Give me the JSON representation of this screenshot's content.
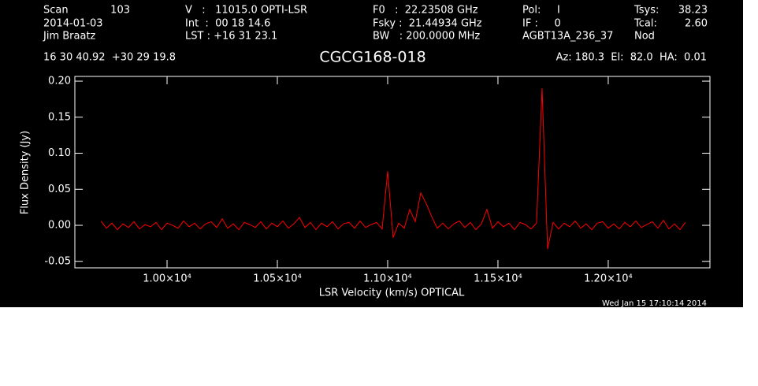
{
  "chart_data": {
    "type": "line",
    "title": "CGCG168-018",
    "header": [
      [
        "Scan",
        "2014-01-03",
        "Jim Braatz"
      ],
      [
        "103"
      ],
      [
        "V   :   11015.0 OPTI-LSR",
        "Int  :  00 18 14.6",
        "LST : +16 31 23.1"
      ],
      [
        "F0   :  22.23508 GHz",
        "Fsky :  21.44934 GHz",
        "BW   : 200.0000 MHz"
      ],
      [
        "Pol:     I",
        "IF :     0",
        "AGBT13A_236_37"
      ],
      [
        "Tsys:",
        "Tcal:",
        "Nod"
      ],
      [
        "38.23",
        "2.60"
      ]
    ],
    "coordinates": "16 30 40.92  +30 29 19.8",
    "pointing": "Az: 180.3  El:  82.0  HA:  0.01",
    "timestamp": "Wed Jan 15 17:10:14 2014",
    "x_label": "LSR Velocity (km/s) OPTICAL",
    "y_label": "Flux Density (Jy)",
    "color": "#ff0000",
    "xlim": [
      9582,
      12461
    ],
    "ylim": [
      -0.059,
      0.2066
    ],
    "xticks": [
      {
        "value": 10000,
        "label": "1.00×10⁴"
      },
      {
        "value": 10500,
        "label": "1.05×10⁴"
      },
      {
        "value": 11000,
        "label": "1.10×10⁴"
      },
      {
        "value": 11500,
        "label": "1.15×10⁴"
      },
      {
        "value": 12000,
        "label": "1.20×10⁴"
      }
    ],
    "yticks": [
      {
        "value": -0.05,
        "label": "-0.05"
      },
      {
        "value": 0,
        "label": "0.00"
      },
      {
        "value": 0.05,
        "label": "0.05"
      },
      {
        "value": 0.1,
        "label": "0.10"
      },
      {
        "value": 0.15,
        "label": "0.15"
      },
      {
        "value": 0.2,
        "label": "0.20"
      }
    ],
    "x": [
      9700,
      9725,
      9750,
      9775,
      9800,
      9825,
      9850,
      9875,
      9900,
      9925,
      9950,
      9975,
      10000,
      10025,
      10050,
      10075,
      10100,
      10125,
      10150,
      10175,
      10200,
      10225,
      10250,
      10275,
      10300,
      10325,
      10350,
      10375,
      10400,
      10425,
      10450,
      10475,
      10500,
      10525,
      10550,
      10575,
      10600,
      10625,
      10650,
      10675,
      10700,
      10725,
      10750,
      10775,
      10800,
      10825,
      10850,
      10875,
      10900,
      10925,
      10950,
      10975,
      11000,
      11025,
      11050,
      11075,
      11100,
      11125,
      11150,
      11175,
      11200,
      11225,
      11250,
      11275,
      11300,
      11325,
      11350,
      11375,
      11400,
      11425,
      11450,
      11475,
      11500,
      11525,
      11550,
      11575,
      11600,
      11625,
      11650,
      11675,
      11700,
      11725,
      11750,
      11775,
      11800,
      11825,
      11850,
      11875,
      11900,
      11925,
      11950,
      11975,
      12000,
      12025,
      12050,
      12075,
      12100,
      12125,
      12150,
      12175,
      12200,
      12225,
      12250,
      12275,
      12300,
      12325,
      12350
    ],
    "values": [
      0.006,
      -0.004,
      0.003,
      -0.006,
      0.002,
      -0.003,
      0.005,
      -0.005,
      0.001,
      -0.002,
      0.004,
      -0.006,
      0.003,
      0.0,
      -0.004,
      0.006,
      -0.002,
      0.003,
      -0.005,
      0.002,
      0.005,
      -0.003,
      0.009,
      -0.004,
      0.002,
      -0.006,
      0.004,
      0.001,
      -0.003,
      0.005,
      -0.005,
      0.003,
      -0.002,
      0.006,
      -0.004,
      0.002,
      0.011,
      -0.003,
      0.004,
      -0.006,
      0.003,
      -0.002,
      0.005,
      -0.005,
      0.002,
      0.004,
      -0.004,
      0.006,
      -0.003,
      0.001,
      0.004,
      -0.005,
      0.075,
      -0.017,
      0.003,
      -0.004,
      0.022,
      0.005,
      0.045,
      0.03,
      0.012,
      -0.004,
      0.003,
      -0.005,
      0.002,
      0.006,
      -0.003,
      0.004,
      -0.006,
      0.002,
      0.022,
      -0.004,
      0.005,
      -0.002,
      0.003,
      -0.006,
      0.004,
      0.001,
      -0.005,
      0.003,
      0.19,
      -0.033,
      0.004,
      -0.005,
      0.003,
      -0.002,
      0.006,
      -0.004,
      0.002,
      -0.006,
      0.003,
      0.005,
      -0.004,
      0.002,
      -0.005,
      0.004,
      -0.002,
      0.006,
      -0.003,
      0.001,
      0.005,
      -0.004,
      0.007,
      -0.005,
      0.002,
      -0.006,
      0.004
    ]
  }
}
